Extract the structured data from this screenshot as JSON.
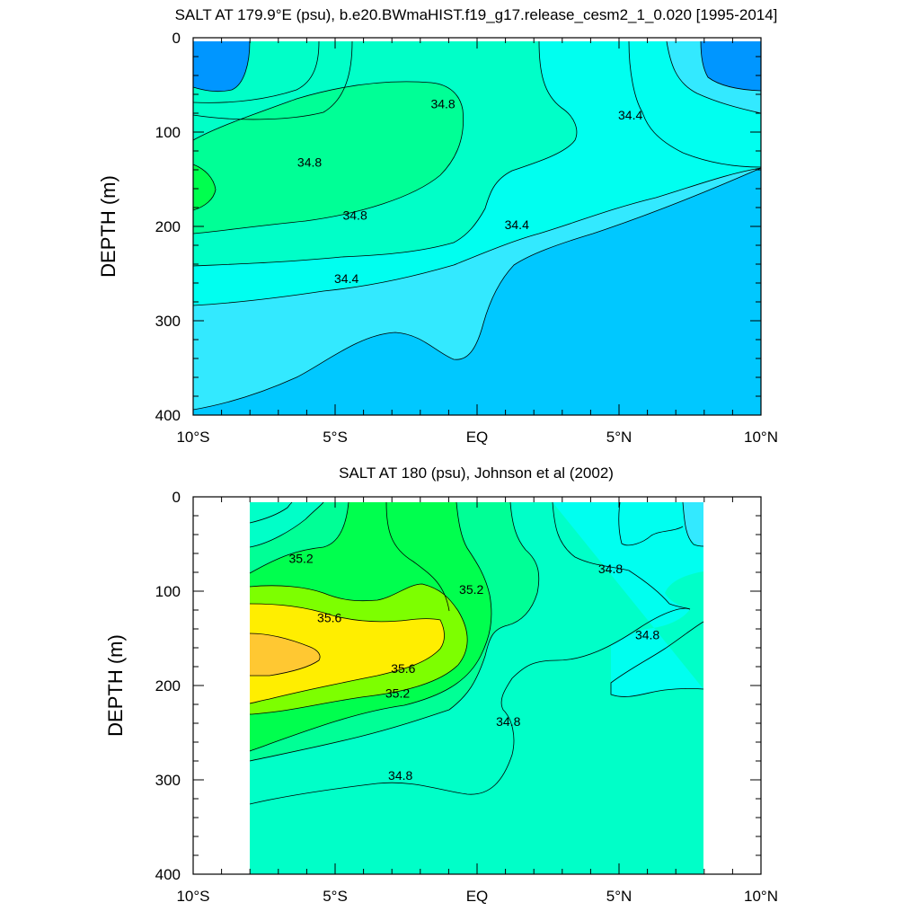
{
  "chart_data": [
    {
      "type": "heatmap",
      "subtype": "filled-contour",
      "title": "SALT AT 179.9°E (psu), b.e20.BWmaHIST.f19_g17.release_cesm2_1_0.020 [1995-2014]",
      "ylabel": "DEPTH (m)",
      "xlabel": "",
      "xlim": [
        -10,
        10
      ],
      "ylim": [
        0,
        400
      ],
      "y_inverted": true,
      "xticks": [
        "10°S",
        "5°S",
        "EQ",
        "5°N",
        "10°N"
      ],
      "yticks": [
        "0",
        "100",
        "200",
        "300",
        "400"
      ],
      "data_extent": {
        "lat": [
          -10,
          10
        ],
        "depth": [
          5,
          400
        ]
      },
      "contour_interval": 0.2,
      "contour_labels": [
        {
          "text": "34.8",
          "lat": -5.9,
          "depth": 132
        },
        {
          "text": "34.8",
          "lat": -1.2,
          "depth": 70
        },
        {
          "text": "34.8",
          "lat": -4.3,
          "depth": 188
        },
        {
          "text": "34.4",
          "lat": 5.4,
          "depth": 82
        },
        {
          "text": "34.4",
          "lat": 1.4,
          "depth": 198
        },
        {
          "text": "34.4",
          "lat": -4.6,
          "depth": 255
        }
      ],
      "fill_colors": {
        "34.0": "#0096ff",
        "34.2": "#00c8ff",
        "34.4": "#33e9ff",
        "34.6": "#00fff0",
        "34.8": "#00ffc8",
        "35.0": "#00ff96",
        "35.2": "#00ff4e",
        "35.4": "#7dff00",
        "35.6": "#ffee00",
        "35.8": "#ffc832"
      }
    },
    {
      "type": "heatmap",
      "subtype": "filled-contour",
      "title": "SALT AT 180 (psu), Johnson et al (2002)",
      "ylabel": "DEPTH (m)",
      "xlabel": "",
      "xlim": [
        -10,
        10
      ],
      "ylim": [
        0,
        400
      ],
      "y_inverted": true,
      "xticks": [
        "10°S",
        "5°S",
        "EQ",
        "5°N",
        "10°N"
      ],
      "yticks": [
        "0",
        "100",
        "200",
        "300",
        "400"
      ],
      "data_extent": {
        "lat": [
          -8,
          8
        ],
        "depth": [
          5,
          400
        ]
      },
      "contour_interval": 0.2,
      "contour_labels": [
        {
          "text": "35.2",
          "lat": -6.2,
          "depth": 65
        },
        {
          "text": "35.6",
          "lat": -5.2,
          "depth": 128
        },
        {
          "text": "35.2",
          "lat": -0.2,
          "depth": 98
        },
        {
          "text": "35.6",
          "lat": -2.6,
          "depth": 182
        },
        {
          "text": "35.2",
          "lat": -2.8,
          "depth": 208
        },
        {
          "text": "34.8",
          "lat": 1.1,
          "depth": 238
        },
        {
          "text": "34.8",
          "lat": 4.7,
          "depth": 76
        },
        {
          "text": "34.8",
          "lat": 6.0,
          "depth": 146
        },
        {
          "text": "34.8",
          "lat": -2.7,
          "depth": 295
        }
      ],
      "fill_colors": {
        "34.4": "#33e9ff",
        "34.6": "#00fff0",
        "34.8": "#00ffc8",
        "35.0": "#00ff96",
        "35.2": "#00ff4e",
        "35.4": "#7dff00",
        "35.6": "#ffee00",
        "35.8": "#ffc832"
      }
    }
  ]
}
